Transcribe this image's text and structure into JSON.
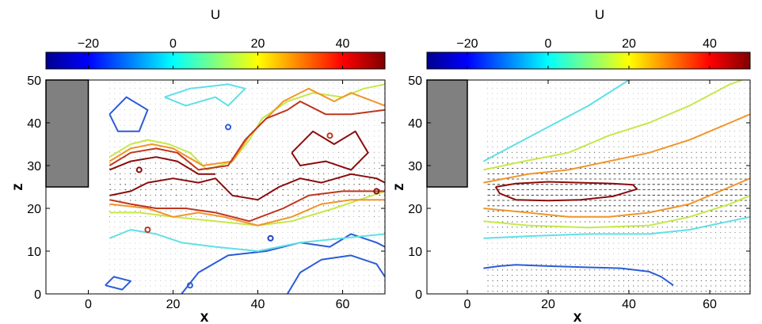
{
  "chart_data": [
    {
      "type": "contour",
      "panel": "left",
      "title": "",
      "xlabel": "x",
      "ylabel": "z",
      "xlim": [
        -10,
        70
      ],
      "ylim": [
        0,
        50
      ],
      "xticks": [
        0,
        20,
        40,
        60
      ],
      "yticks": [
        0,
        10,
        20,
        30,
        40,
        50
      ],
      "colorbar": {
        "label": "U",
        "range": [
          -30,
          50
        ],
        "ticks": [
          -20,
          0,
          20,
          40
        ],
        "colormap": "jet",
        "position": "top"
      },
      "obstacle": {
        "x": [
          -10,
          0
        ],
        "z": [
          25,
          50
        ],
        "color": "#808080"
      },
      "vector_field": true,
      "contours": [
        {
          "level": -10,
          "color": "#2b5cd8",
          "pts": [
            [
              5,
              42
            ],
            [
              9,
              46
            ],
            [
              14,
              43
            ],
            [
              12,
              38
            ],
            [
              7,
              38
            ],
            [
              5,
              42
            ]
          ]
        },
        {
          "level": -10,
          "color": "#2b5cd8",
          "pts": [
            [
              47,
              0
            ],
            [
              50,
              5
            ],
            [
              55,
              8
            ],
            [
              62,
              9
            ],
            [
              68,
              7
            ],
            [
              70,
              4
            ]
          ]
        },
        {
          "level": -10,
          "color": "#2b5cd8",
          "pts": [
            [
              22,
              0
            ],
            [
              26,
              5
            ],
            [
              33,
              9
            ],
            [
              42,
              10
            ],
            [
              50,
              12
            ],
            [
              57,
              11
            ],
            [
              62,
              14
            ],
            [
              68,
              12
            ],
            [
              70,
              11
            ]
          ]
        },
        {
          "level": -10,
          "color": "#2b5cd8",
          "pts": [
            [
              4,
              2
            ],
            [
              8,
              1
            ],
            [
              10,
              3
            ],
            [
              6,
              4
            ],
            [
              4,
              2
            ]
          ]
        },
        {
          "level": 0,
          "color": "#5fe0e6",
          "pts": [
            [
              5,
              13
            ],
            [
              10,
              15
            ],
            [
              16,
              14
            ],
            [
              22,
              12
            ],
            [
              30,
              11
            ],
            [
              40,
              10
            ],
            [
              50,
              12
            ],
            [
              60,
              13
            ],
            [
              70,
              14
            ]
          ]
        },
        {
          "level": 0,
          "color": "#5fe0e6",
          "pts": [
            [
              18,
              46
            ],
            [
              23,
              44
            ],
            [
              30,
              46
            ],
            [
              33,
              44
            ],
            [
              37,
              48
            ],
            [
              33,
              49
            ],
            [
              24,
              48
            ],
            [
              18,
              46
            ]
          ]
        },
        {
          "level": 10,
          "color": "#c6e84a",
          "pts": [
            [
              5,
              19
            ],
            [
              12,
              19
            ],
            [
              20,
              18
            ],
            [
              30,
              17
            ],
            [
              40,
              16
            ],
            [
              48,
              17
            ],
            [
              58,
              20
            ],
            [
              70,
              24
            ]
          ]
        },
        {
          "level": 10,
          "color": "#c6e84a",
          "pts": [
            [
              5,
              32
            ],
            [
              10,
              35
            ],
            [
              14,
              36
            ],
            [
              19,
              35
            ],
            [
              24,
              33
            ],
            [
              28,
              29
            ],
            [
              34,
              31
            ],
            [
              38,
              36
            ],
            [
              41,
              41
            ],
            [
              47,
              45
            ],
            [
              53,
              47
            ],
            [
              60,
              46
            ],
            [
              65,
              48
            ],
            [
              70,
              49
            ]
          ]
        },
        {
          "level": 20,
          "color": "#f0952a",
          "pts": [
            [
              5,
              21
            ],
            [
              14,
              20
            ],
            [
              20,
              18
            ],
            [
              26,
              19
            ],
            [
              32,
              18
            ],
            [
              40,
              16
            ],
            [
              48,
              18
            ],
            [
              55,
              21
            ],
            [
              62,
              22
            ],
            [
              70,
              22
            ]
          ]
        },
        {
          "level": 20,
          "color": "#f0952a",
          "pts": [
            [
              5,
              31
            ],
            [
              10,
              34
            ],
            [
              15,
              35
            ],
            [
              20,
              34
            ],
            [
              27,
              30
            ],
            [
              34,
              31
            ],
            [
              38,
              37
            ],
            [
              41,
              40
            ],
            [
              46,
              45
            ],
            [
              52,
              48
            ],
            [
              58,
              45
            ],
            [
              62,
              47
            ],
            [
              70,
              44
            ]
          ]
        },
        {
          "level": 30,
          "color": "#c0361e",
          "pts": [
            [
              5,
              22
            ],
            [
              10,
              21
            ],
            [
              16,
              20
            ],
            [
              23,
              20
            ],
            [
              30,
              19
            ],
            [
              38,
              17
            ],
            [
              46,
              20
            ],
            [
              52,
              23
            ],
            [
              60,
              24
            ],
            [
              70,
              24
            ]
          ]
        },
        {
          "level": 30,
          "color": "#c0361e",
          "pts": [
            [
              5,
              30
            ],
            [
              10,
              33
            ],
            [
              16,
              34
            ],
            [
              21,
              33
            ],
            [
              26,
              29
            ],
            [
              33,
              30
            ],
            [
              37,
              36
            ],
            [
              42,
              41
            ],
            [
              47,
              43
            ],
            [
              50,
              45
            ],
            [
              56,
              42
            ],
            [
              62,
              42
            ],
            [
              70,
              43
            ]
          ]
        },
        {
          "level": 40,
          "color": "#8a0b0b",
          "pts": [
            [
              5,
              23
            ],
            [
              10,
              24
            ],
            [
              14,
              26
            ],
            [
              20,
              27
            ],
            [
              26,
              26
            ],
            [
              30,
              27
            ],
            [
              34,
              23
            ],
            [
              40,
              22
            ],
            [
              45,
              25
            ],
            [
              50,
              27
            ],
            [
              55,
              26
            ],
            [
              62,
              28
            ],
            [
              68,
              27
            ],
            [
              70,
              26
            ]
          ]
        },
        {
          "level": 40,
          "color": "#8a0b0b",
          "pts": [
            [
              5,
              29
            ],
            [
              10,
              31
            ],
            [
              16,
              32
            ],
            [
              21,
              31
            ],
            [
              26,
              28
            ],
            [
              30,
              28
            ]
          ]
        },
        {
          "level": 40,
          "color": "#8a0b0b",
          "pts": [
            [
              48,
              33
            ],
            [
              53,
              38
            ],
            [
              58,
              35
            ],
            [
              63,
              38
            ],
            [
              66,
              33
            ],
            [
              62,
              29
            ],
            [
              56,
              31
            ],
            [
              50,
              30
            ],
            [
              48,
              33
            ]
          ]
        }
      ],
      "spots": [
        {
          "x": 43,
          "z": 13,
          "color": "#1f3fc8"
        },
        {
          "x": 14,
          "z": 15,
          "color": "#c0361e"
        },
        {
          "x": 12,
          "z": 29,
          "color": "#8a0b0b"
        },
        {
          "x": 24,
          "z": 2,
          "color": "#2b5cd8"
        },
        {
          "x": 33,
          "z": 39,
          "color": "#2b5cd8"
        },
        {
          "x": 57,
          "z": 37,
          "color": "#c0361e"
        },
        {
          "x": 68,
          "z": 24,
          "color": "#8a0b0b"
        }
      ]
    },
    {
      "type": "contour",
      "panel": "right",
      "title": "",
      "xlabel": "x",
      "ylabel": "z",
      "xlim": [
        -10,
        70
      ],
      "ylim": [
        0,
        50
      ],
      "xticks": [
        0,
        20,
        40,
        60
      ],
      "yticks": [
        0,
        10,
        20,
        30,
        40,
        50
      ],
      "colorbar": {
        "label": "U",
        "range": [
          -30,
          50
        ],
        "ticks": [
          -20,
          0,
          20,
          40
        ],
        "colormap": "jet",
        "position": "top"
      },
      "obstacle": {
        "x": [
          -10,
          0
        ],
        "z": [
          25,
          50
        ],
        "color": "#808080"
      },
      "vector_field": true,
      "contours": [
        {
          "level": -10,
          "color": "#2b5cd8",
          "pts": [
            [
              4,
              6
            ],
            [
              8,
              6.5
            ],
            [
              12,
              6.8
            ],
            [
              20,
              6.5
            ],
            [
              30,
              6.2
            ],
            [
              38,
              6
            ],
            [
              45,
              5.2
            ],
            [
              48,
              4
            ],
            [
              51,
              2
            ]
          ]
        },
        {
          "level": 0,
          "color": "#5fe0e6",
          "pts": [
            [
              4,
              13
            ],
            [
              15,
              13.5
            ],
            [
              30,
              14
            ],
            [
              45,
              14
            ],
            [
              55,
              15
            ],
            [
              65,
              17
            ],
            [
              70,
              18
            ]
          ]
        },
        {
          "level": 0,
          "color": "#5fe0e6",
          "pts": [
            [
              4,
              31
            ],
            [
              10,
              34
            ],
            [
              18,
              38
            ],
            [
              30,
              44
            ],
            [
              40,
              50
            ]
          ]
        },
        {
          "level": 10,
          "color": "#c6e84a",
          "pts": [
            [
              4,
              17
            ],
            [
              15,
              16
            ],
            [
              30,
              15.5
            ],
            [
              45,
              16
            ],
            [
              55,
              18
            ],
            [
              65,
              21
            ],
            [
              70,
              23
            ]
          ]
        },
        {
          "level": 10,
          "color": "#c6e84a",
          "pts": [
            [
              4,
              29
            ],
            [
              14,
              31
            ],
            [
              25,
              33
            ],
            [
              35,
              37
            ],
            [
              45,
              40
            ],
            [
              55,
              44
            ],
            [
              65,
              49
            ],
            [
              68,
              50
            ]
          ]
        },
        {
          "level": 20,
          "color": "#f0952a",
          "pts": [
            [
              4,
              20
            ],
            [
              15,
              19
            ],
            [
              25,
              18
            ],
            [
              35,
              18
            ],
            [
              45,
              19
            ],
            [
              55,
              21
            ],
            [
              65,
              25
            ],
            [
              70,
              27
            ]
          ]
        },
        {
          "level": 20,
          "color": "#f0952a",
          "pts": [
            [
              4,
              26
            ],
            [
              15,
              28
            ],
            [
              25,
              29
            ],
            [
              35,
              31
            ],
            [
              45,
              33
            ],
            [
              55,
              36
            ],
            [
              65,
              40
            ],
            [
              70,
              42
            ]
          ]
        },
        {
          "level": 40,
          "color": "#8a0b0b",
          "pts": [
            [
              7,
              25
            ],
            [
              8,
              23.5
            ],
            [
              12,
              22
            ],
            [
              20,
              21.8
            ],
            [
              28,
              22
            ],
            [
              36,
              22.8
            ],
            [
              42,
              24.5
            ],
            [
              41,
              25.5
            ],
            [
              36,
              25.8
            ],
            [
              28,
              26
            ],
            [
              20,
              26.2
            ],
            [
              12,
              25.8
            ],
            [
              7,
              25
            ]
          ]
        }
      ],
      "spots": []
    }
  ]
}
